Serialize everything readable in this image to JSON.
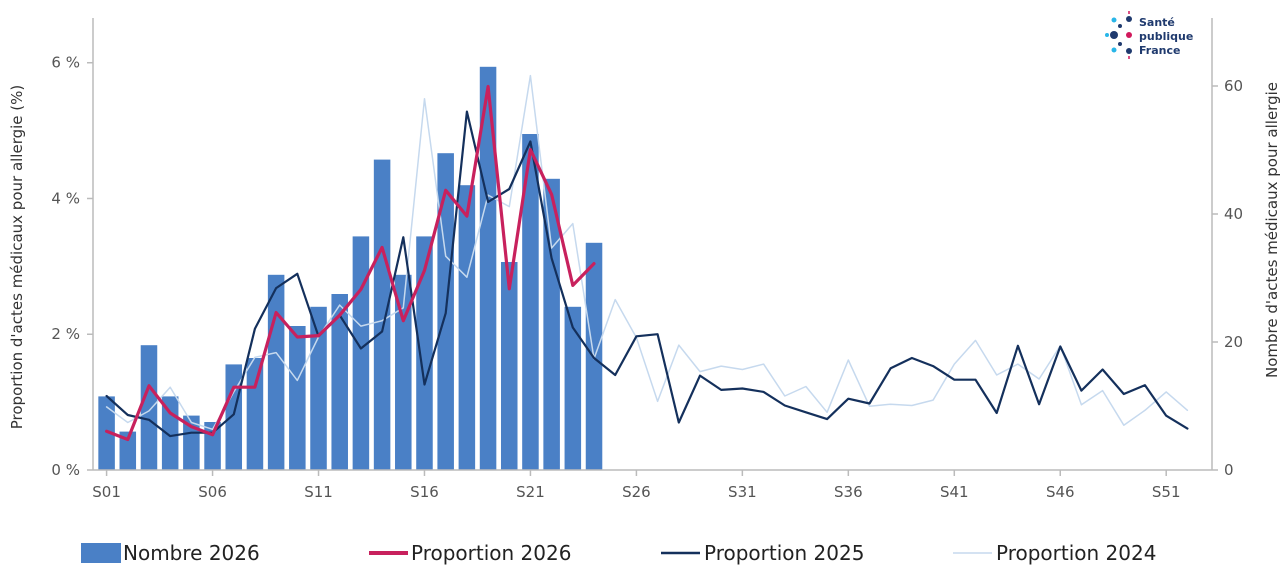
{
  "colors": {
    "bars": "#4a80c6",
    "proportion_2026": "#c8215d",
    "proportion_2025": "#14305c",
    "proportion_2024": "#c6d9ee",
    "axis": "#bbbbbb",
    "logo_cyan": "#29b6e8",
    "logo_navy": "#1f3a6e",
    "logo_magenta": "#d1195c"
  },
  "logo": {
    "line1": "Santé",
    "line2": "publique",
    "line3": "France"
  },
  "chart_data": {
    "type": "bar",
    "xlabel": "",
    "ylabel": "Proportion d'actes médicaux pour allergie (%)",
    "y2label": "Nombre d'actes médicaux pour allergie",
    "ylim": [
      0,
      6.6
    ],
    "y2lim": [
      0,
      70
    ],
    "yticks": [
      "0 %",
      "2 %",
      "4 %",
      "6 %"
    ],
    "y2ticks": [
      "0",
      "20",
      "40",
      "60"
    ],
    "xticks": [
      "S01",
      "S06",
      "S11",
      "S16",
      "S21",
      "S26",
      "S31",
      "S36",
      "S41",
      "S46",
      "S51"
    ],
    "weeks": [
      1,
      2,
      3,
      4,
      5,
      6,
      7,
      8,
      9,
      10,
      11,
      12,
      13,
      14,
      15,
      16,
      17,
      18,
      19,
      20,
      21,
      22,
      23,
      24,
      25,
      26,
      27,
      28,
      29,
      30,
      31,
      32,
      33,
      34,
      35,
      36,
      37,
      38,
      39,
      40,
      41,
      42,
      43,
      44,
      45,
      46,
      47,
      48,
      49,
      50,
      51,
      52
    ],
    "grid": false,
    "legend_position": "bottom",
    "series": [
      {
        "name": "Nombre 2026",
        "type": "bar",
        "axis": "right",
        "values": [
          11.5,
          6,
          19.5,
          11.5,
          8.5,
          7.5,
          16.5,
          17.5,
          30.5,
          22.5,
          25.5,
          27.5,
          36.5,
          48.5,
          30.5,
          36.5,
          49.5,
          44.5,
          63,
          32.5,
          52.5,
          45.5,
          25.5,
          35.5
        ]
      },
      {
        "name": "Proportion 2026",
        "type": "line",
        "axis": "left",
        "values": [
          0.57,
          0.45,
          1.24,
          0.84,
          0.64,
          0.52,
          1.22,
          1.22,
          2.32,
          1.96,
          1.98,
          2.28,
          2.66,
          3.28,
          2.2,
          2.94,
          4.12,
          3.74,
          5.65,
          2.67,
          4.72,
          4.06,
          2.72,
          3.04
        ]
      },
      {
        "name": "Proportion 2025",
        "type": "line",
        "axis": "left",
        "values": [
          1.09,
          0.81,
          0.74,
          0.5,
          0.55,
          0.55,
          0.82,
          2.08,
          2.68,
          2.89,
          1.97,
          2.28,
          1.79,
          2.04,
          3.43,
          1.26,
          2.31,
          5.28,
          3.95,
          4.14,
          4.84,
          3.12,
          2.1,
          1.65,
          1.4,
          1.97,
          2.0,
          0.7,
          1.39,
          1.18,
          1.2,
          1.15,
          0.95,
          0.85,
          0.75,
          1.05,
          0.98,
          1.5,
          1.65,
          1.53,
          1.33,
          1.33,
          0.84,
          1.83,
          0.97,
          1.82,
          1.17,
          1.48,
          1.12,
          1.25,
          0.8,
          0.61
        ]
      },
      {
        "name": "Proportion 2024",
        "type": "line",
        "axis": "left",
        "values": [
          0.93,
          0.7,
          0.87,
          1.22,
          0.7,
          0.6,
          1.15,
          1.66,
          1.73,
          1.32,
          1.96,
          2.43,
          2.12,
          2.2,
          2.39,
          5.47,
          3.15,
          2.84,
          4.05,
          3.88,
          5.81,
          3.27,
          3.63,
          1.64,
          2.51,
          1.95,
          1.01,
          1.84,
          1.45,
          1.53,
          1.48,
          1.56,
          1.09,
          1.23,
          0.85,
          1.62,
          0.94,
          0.97,
          0.95,
          1.03,
          1.56,
          1.91,
          1.4,
          1.56,
          1.34,
          1.83,
          0.96,
          1.17,
          0.66,
          0.88,
          1.15,
          0.88
        ]
      }
    ]
  }
}
